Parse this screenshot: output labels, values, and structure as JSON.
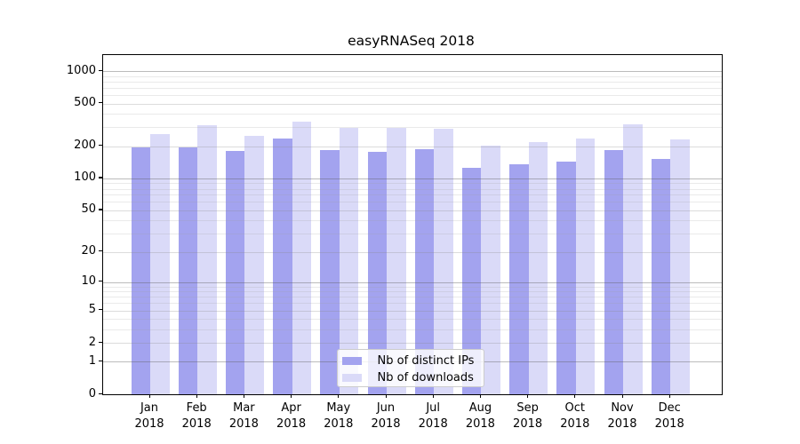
{
  "title": "easyRNASeq 2018",
  "colors": {
    "bar_distinct_ips": "#a3a3ef",
    "bar_downloads": "#dadaf8",
    "axis": "#000000",
    "legend_border": "#cccccc"
  },
  "chart_data": {
    "type": "bar",
    "title": "easyRNASeq 2018",
    "x": {
      "months": [
        "Jan",
        "Feb",
        "Mar",
        "Apr",
        "May",
        "Jun",
        "Jul",
        "Aug",
        "Sep",
        "Oct",
        "Nov",
        "Dec"
      ],
      "year": "2018"
    },
    "series": [
      {
        "name": "Nb of distinct IPs",
        "color": "#a3a3ef",
        "values": [
          195,
          196,
          181,
          237,
          183,
          177,
          188,
          125,
          135,
          144,
          183,
          153
        ]
      },
      {
        "name": "Nb of downloads",
        "color": "#dadaf8",
        "values": [
          257,
          312,
          248,
          340,
          295,
          295,
          290,
          202,
          218,
          236,
          318,
          231
        ]
      }
    ],
    "y_axis": {
      "scale": "log10(value+1)",
      "tick_values": [
        0,
        1,
        2,
        5,
        10,
        20,
        50,
        100,
        200,
        500,
        1000
      ],
      "tick_labels": [
        "0",
        "1",
        "2",
        "5",
        "10",
        "20",
        "50",
        "100",
        "200",
        "500",
        "1000"
      ],
      "major_gridlines": [
        1,
        10,
        100,
        1000
      ],
      "mid_gridlines": [
        2,
        5,
        20,
        50,
        200,
        500
      ],
      "minor_gridlines": [
        3,
        4,
        6,
        7,
        8,
        9,
        30,
        40,
        60,
        70,
        80,
        90,
        300,
        400,
        600,
        700,
        800,
        900
      ],
      "range": [
        0,
        1430
      ]
    },
    "grid": true,
    "legend": {
      "position": "lower-center",
      "entries": [
        "Nb of distinct IPs",
        "Nb of downloads"
      ]
    }
  }
}
